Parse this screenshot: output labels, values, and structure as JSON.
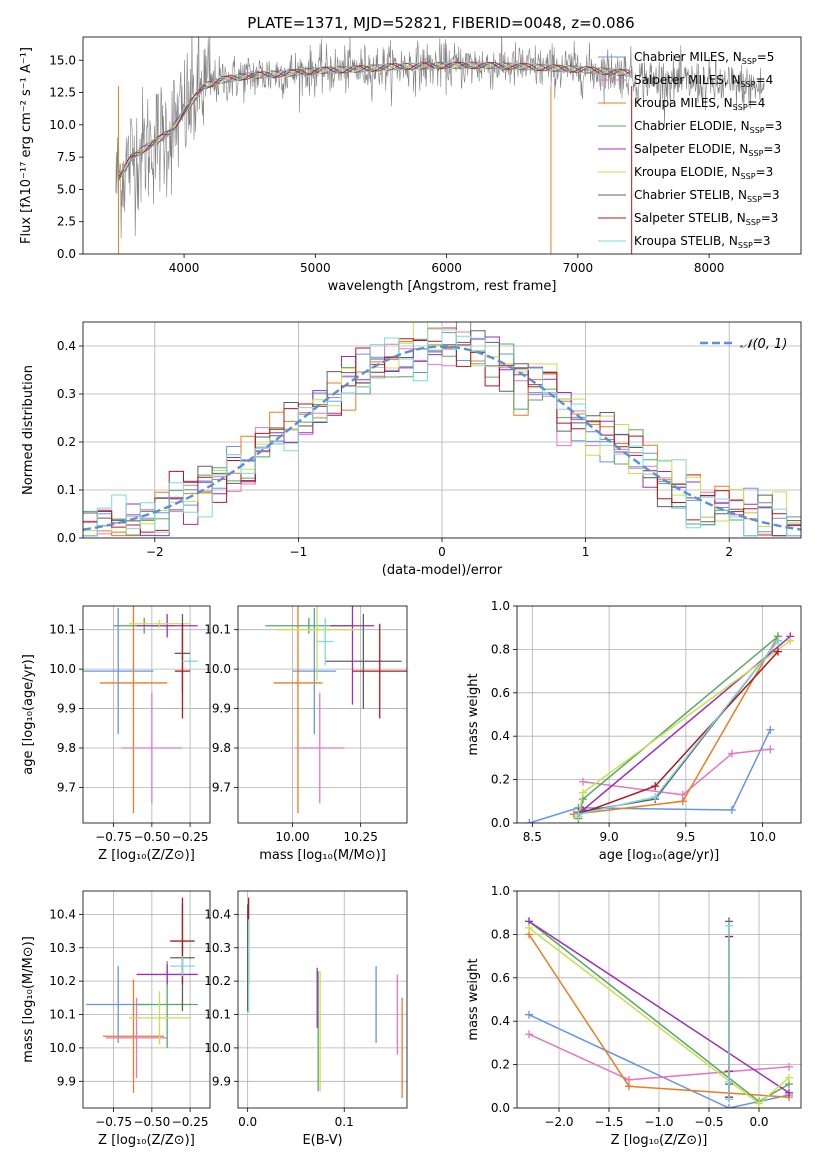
{
  "figure": {
    "title": "PLATE=1371, MJD=52821, FIBERID=0048, z=0.086"
  },
  "colors": {
    "Chabrier MILES": "#6495ed",
    "Salpeter MILES": "#e377c2",
    "Kroupa MILES": "#e67e22",
    "Chabrier ELODIE": "#55a868",
    "Salpeter ELODIE": "#9b30b8",
    "Kroupa ELODIE": "#c8e04a",
    "Chabrier STELIB": "#606060",
    "Salpeter STELIB": "#b3181c",
    "Kroupa STELIB": "#7fd7e0",
    "data": "#808080",
    "grid": "#b0b0b0"
  },
  "chart_data": [
    {
      "id": "spectrum",
      "type": "line",
      "title": "PLATE=1371, MJD=52821, FIBERID=0048, z=0.086",
      "xlabel": "wavelength [Angstrom, rest frame]",
      "ylabel": "Flux [fλ10⁻¹⁷ erg cm⁻² s⁻¹ A⁻¹]",
      "xlim": [
        3230,
        8700
      ],
      "ylim": [
        0,
        16.8
      ],
      "xticks": [
        4000,
        5000,
        6000,
        7000,
        8000
      ],
      "yticks": [
        0.0,
        2.5,
        5.0,
        7.5,
        10.0,
        12.5,
        15.0
      ],
      "grid": false,
      "legend_position": "right",
      "legend": [
        {
          "key": "Chabrier MILES",
          "label": "Chabrier MILES, N",
          "n": "=5"
        },
        {
          "key": "Salpeter MILES",
          "label": "Salpeter MILES, N",
          "n": "=4"
        },
        {
          "key": "Kroupa MILES",
          "label": "Kroupa MILES, N",
          "n": "=4"
        },
        {
          "key": "Chabrier ELODIE",
          "label": "Chabrier ELODIE, N",
          "n": "=3"
        },
        {
          "key": "Salpeter ELODIE",
          "label": "Salpeter ELODIE, N",
          "n": "=3"
        },
        {
          "key": "Kroupa ELODIE",
          "label": "Kroupa ELODIE, N",
          "n": "=3"
        },
        {
          "key": "Chabrier STELIB",
          "label": "Chabrier STELIB, N",
          "n": "=3"
        },
        {
          "key": "Salpeter STELIB",
          "label": "Salpeter STELIB, N",
          "n": "=3"
        },
        {
          "key": "Kroupa STELIB",
          "label": "Kroupa STELIB, N",
          "n": "=3"
        }
      ],
      "legend_subscript": "SSP",
      "envelope": [
        [
          3480,
          5.5
        ],
        [
          3600,
          7.5
        ],
        [
          3750,
          8.5
        ],
        [
          3900,
          9.5
        ],
        [
          4000,
          11.0
        ],
        [
          4150,
          13.0
        ],
        [
          4300,
          13.5
        ],
        [
          4500,
          13.8
        ],
        [
          4800,
          14.0
        ],
        [
          5000,
          14.2
        ],
        [
          5300,
          14.3
        ],
        [
          5600,
          14.5
        ],
        [
          6000,
          14.6
        ],
        [
          6300,
          14.6
        ],
        [
          6600,
          14.5
        ],
        [
          7000,
          14.3
        ],
        [
          7400,
          14.0
        ],
        [
          7420,
          13.8
        ]
      ],
      "data_end": 8420
    },
    {
      "id": "residuals",
      "type": "histogram",
      "xlabel": "(data-model)/error",
      "ylabel": "Normed distribution",
      "xlim": [
        -2.5,
        2.5
      ],
      "ylim": [
        0,
        0.45
      ],
      "xticks": [
        -2,
        -1,
        0,
        1,
        2
      ],
      "yticks": [
        0.0,
        0.1,
        0.2,
        0.3,
        0.4
      ],
      "grid": true,
      "legend_position": "top-right",
      "reference_label": "𝒩(0, 1)",
      "bin_width": 0.1
    },
    {
      "id": "age_vs_Z",
      "type": "scatter",
      "xlabel": "Z [log₁₀(Z/Z⊙)]",
      "ylabel": "age  [log₁₀(age/yr)]",
      "xlim": [
        -0.95,
        -0.12
      ],
      "ylim": [
        9.61,
        10.16
      ],
      "xticks": [
        -0.75,
        -0.5,
        -0.25
      ],
      "xtick_labels": [
        "−0.75",
        "−0.50",
        "−0.25"
      ],
      "yticks": [
        9.7,
        9.8,
        9.9,
        10.0,
        10.1
      ],
      "grid": true,
      "points": [
        {
          "key": "Chabrier MILES",
          "x": -0.72,
          "xerr": 0.23,
          "y": 9.995,
          "yerr": 0.16
        },
        {
          "key": "Kroupa MILES",
          "x": -0.62,
          "xerr": 0.22,
          "y": 9.965,
          "yerr": 0.33
        },
        {
          "key": "Salpeter MILES",
          "x": -0.5,
          "xerr": 0.2,
          "y": 9.8,
          "yerr": 0.14
        },
        {
          "key": "Chabrier ELODIE",
          "x": -0.55,
          "xerr": 0.2,
          "y": 10.11,
          "yerr": 0.02
        },
        {
          "key": "Salpeter ELODIE",
          "x": -0.4,
          "xerr": 0.2,
          "y": 10.11,
          "yerr": 0.03
        },
        {
          "key": "Kroupa ELODIE",
          "x": -0.45,
          "xerr": 0.2,
          "y": 10.115,
          "yerr": 0.01
        },
        {
          "key": "Chabrier STELIB",
          "x": -0.3,
          "xerr": 0.05,
          "y": 10.04,
          "yerr": 0.1
        },
        {
          "key": "Salpeter STELIB",
          "x": -0.3,
          "xerr": 0.05,
          "y": 9.995,
          "yerr": 0.12
        },
        {
          "key": "Kroupa STELIB",
          "x": -0.25,
          "xerr": 0.05,
          "y": 10.02,
          "yerr": 0.01
        }
      ]
    },
    {
      "id": "age_vs_mass",
      "type": "scatter",
      "xlabel": "mass [log₁₀(M/M⊙)]",
      "xlim": [
        9.8,
        10.42
      ],
      "ylim": [
        9.61,
        10.16
      ],
      "xticks": [
        10.0,
        10.25
      ],
      "xtick_labels": [
        "10.00",
        "10.25"
      ],
      "yticks": [
        9.7,
        9.8,
        9.9,
        10.0,
        10.1
      ],
      "grid": true,
      "points": [
        {
          "key": "Chabrier MILES",
          "x": 10.08,
          "xerr": 0.08,
          "y": 9.995,
          "yerr": 0.16
        },
        {
          "key": "Kroupa MILES",
          "x": 10.02,
          "xerr": 0.09,
          "y": 9.965,
          "yerr": 0.33
        },
        {
          "key": "Salpeter MILES",
          "x": 10.1,
          "xerr": 0.09,
          "y": 9.8,
          "yerr": 0.14
        },
        {
          "key": "Chabrier ELODIE",
          "x": 10.06,
          "xerr": 0.16,
          "y": 10.11,
          "yerr": 0.02
        },
        {
          "key": "Salpeter ELODIE",
          "x": 10.22,
          "xerr": 0.08,
          "y": 10.11,
          "yerr": 0.2
        },
        {
          "key": "Kroupa ELODIE",
          "x": 10.09,
          "xerr": 0.15,
          "y": 10.1,
          "yerr": 0.13
        },
        {
          "key": "Chabrier STELIB",
          "x": 10.26,
          "xerr": 0.14,
          "y": 10.02,
          "yerr": 0.12
        },
        {
          "key": "Salpeter STELIB",
          "x": 10.32,
          "xerr": 0.1,
          "y": 9.995,
          "yerr": 0.12
        },
        {
          "key": "Kroupa STELIB",
          "x": 10.12,
          "xerr": 0.03,
          "y": 10.07,
          "yerr": 0.06
        }
      ]
    },
    {
      "id": "weight_vs_age",
      "type": "line",
      "xlabel": "age  [log₁₀(age/yr)]",
      "ylabel": "mass weight",
      "xlim": [
        8.4,
        10.25
      ],
      "ylim": [
        0,
        1.0
      ],
      "xticks": [
        8.5,
        9.0,
        9.5,
        10.0
      ],
      "xtick_labels": [
        "8.5",
        "9.0",
        "9.5",
        "10.0"
      ],
      "yticks": [
        0.0,
        0.2,
        0.4,
        0.6,
        0.8,
        1.0
      ],
      "grid": true,
      "series": [
        {
          "key": "Chabrier MILES",
          "x": [
            8.48,
            8.8,
            9.8,
            10.05
          ],
          "y": [
            0.0,
            0.07,
            0.06,
            0.43
          ]
        },
        {
          "key": "Salpeter MILES",
          "x": [
            8.83,
            9.48,
            9.8,
            10.05
          ],
          "y": [
            0.19,
            0.13,
            0.32,
            0.34
          ]
        },
        {
          "key": "Kroupa MILES",
          "x": [
            8.77,
            9.48,
            10.1
          ],
          "y": [
            0.04,
            0.1,
            0.86
          ]
        },
        {
          "key": "Chabrier ELODIE",
          "x": [
            8.8,
            8.83,
            10.1
          ],
          "y": [
            0.02,
            0.11,
            0.86
          ]
        },
        {
          "key": "Salpeter ELODIE",
          "x": [
            8.8,
            8.83,
            10.18
          ],
          "y": [
            0.03,
            0.06,
            0.86
          ]
        },
        {
          "key": "Kroupa ELODIE",
          "x": [
            8.8,
            8.83,
            10.18
          ],
          "y": [
            0.03,
            0.14,
            0.84
          ]
        },
        {
          "key": "Chabrier STELIB",
          "x": [
            8.8,
            9.3,
            10.1
          ],
          "y": [
            0.05,
            0.11,
            0.84
          ]
        },
        {
          "key": "Salpeter STELIB",
          "x": [
            8.8,
            9.3,
            10.1
          ],
          "y": [
            0.04,
            0.17,
            0.79
          ]
        },
        {
          "key": "Kroupa STELIB",
          "x": [
            8.8,
            9.3,
            10.1
          ],
          "y": [
            0.04,
            0.12,
            0.84
          ]
        }
      ]
    },
    {
      "id": "mass_vs_Z",
      "type": "scatter",
      "xlabel": "Z [log₁₀(Z/Z⊙)]",
      "ylabel": "mass [log₁₀(M/M⊙)]",
      "xlim": [
        -0.95,
        -0.12
      ],
      "ylim": [
        9.82,
        10.47
      ],
      "xticks": [
        -0.75,
        -0.5,
        -0.25
      ],
      "xtick_labels": [
        "−0.75",
        "−0.50",
        "−0.25"
      ],
      "yticks": [
        9.9,
        10.0,
        10.1,
        10.2,
        10.3,
        10.4
      ],
      "grid": true,
      "points": [
        {
          "key": "Chabrier MILES",
          "x": -0.72,
          "xerr": 0.21,
          "y": 10.13,
          "yerr": 0.115
        },
        {
          "key": "Kroupa MILES",
          "x": -0.62,
          "xerr": 0.2,
          "y": 10.035,
          "yerr": 0.17
        },
        {
          "key": "Salpeter MILES",
          "x": -0.6,
          "xerr": 0.2,
          "y": 10.03,
          "yerr": 0.12
        },
        {
          "key": "Chabrier ELODIE",
          "x": -0.4,
          "xerr": 0.2,
          "y": 10.13,
          "yerr": 0.13
        },
        {
          "key": "Salpeter ELODIE",
          "x": -0.4,
          "xerr": 0.2,
          "y": 10.22,
          "yerr": 0.03
        },
        {
          "key": "Kroupa ELODIE",
          "x": -0.45,
          "xerr": 0.2,
          "y": 10.09,
          "yerr": 0.08
        },
        {
          "key": "Chabrier STELIB",
          "x": -0.3,
          "xerr": 0.08,
          "y": 10.27,
          "yerr": 0.16
        },
        {
          "key": "Salpeter STELIB",
          "x": -0.3,
          "xerr": 0.08,
          "y": 10.32,
          "yerr": 0.13
        },
        {
          "key": "Kroupa STELIB",
          "x": -0.3,
          "xerr": 0.08,
          "y": 10.245,
          "yerr": 0.03
        }
      ]
    },
    {
      "id": "mass_vs_ebv",
      "type": "scatter",
      "xlabel": "E(B-V)",
      "xlim": [
        -0.01,
        0.165
      ],
      "ylim": [
        9.82,
        10.47
      ],
      "xticks": [
        0.0,
        0.1
      ],
      "xtick_labels": [
        "0.0",
        "0.1"
      ],
      "yticks": [
        9.9,
        10.0,
        10.1,
        10.2,
        10.3,
        10.4
      ],
      "grid": true,
      "points": [
        {
          "key": "Chabrier MILES",
          "x": 0.133,
          "y": 10.13,
          "yerr": 0.115
        },
        {
          "key": "Salpeter MILES",
          "x": 0.155,
          "y": 10.1,
          "yerr": 0.12
        },
        {
          "key": "Kroupa MILES",
          "x": 0.16,
          "y": 10.0,
          "yerr": 0.15
        },
        {
          "key": "Chabrier ELODIE",
          "x": 0.073,
          "y": 10.05,
          "yerr": 0.18
        },
        {
          "key": "Salpeter ELODIE",
          "x": 0.072,
          "y": 10.15,
          "yerr": 0.09
        },
        {
          "key": "Kroupa ELODIE",
          "x": 0.075,
          "y": 10.05,
          "yerr": 0.18
        },
        {
          "key": "Chabrier STELIB",
          "x": 0.0,
          "y": 10.27,
          "yerr": 0.16
        },
        {
          "key": "Salpeter STELIB",
          "x": 0.001,
          "y": 10.32,
          "yerr": 0.13
        },
        {
          "key": "Kroupa STELIB",
          "x": 0.001,
          "y": 10.245,
          "yerr": 0.14
        }
      ]
    },
    {
      "id": "weight_vs_Z",
      "type": "line",
      "xlabel": "Z [log₁₀(Z/Z⊙)]",
      "ylabel": "mass weight",
      "xlim": [
        -2.42,
        0.42
      ],
      "ylim": [
        0,
        1.0
      ],
      "xticks": [
        -2.0,
        -1.5,
        -1.0,
        -0.5,
        0.0
      ],
      "xtick_labels": [
        "−2.0",
        "−1.5",
        "−1.0",
        "−0.5",
        "0.0"
      ],
      "yticks": [
        0.0,
        0.2,
        0.4,
        0.6,
        0.8,
        1.0
      ],
      "grid": true,
      "series": [
        {
          "key": "Chabrier MILES",
          "x": [
            -2.3,
            -0.3,
            0.3
          ],
          "y": [
            0.43,
            0.0,
            0.06
          ]
        },
        {
          "key": "Salpeter MILES",
          "x": [
            -2.3,
            -1.3,
            0.3
          ],
          "y": [
            0.34,
            0.13,
            0.19
          ]
        },
        {
          "key": "Kroupa MILES",
          "x": [
            -2.3,
            -1.3,
            0.3
          ],
          "y": [
            0.8,
            0.1,
            0.05
          ]
        },
        {
          "key": "Chabrier ELODIE",
          "x": [
            -2.3,
            0.0,
            0.3
          ],
          "y": [
            0.86,
            0.03,
            0.11
          ]
        },
        {
          "key": "Salpeter ELODIE",
          "x": [
            -2.3,
            0.3
          ],
          "y": [
            0.86,
            0.07
          ]
        },
        {
          "key": "Kroupa ELODIE",
          "x": [
            -2.3,
            0.0,
            0.3
          ],
          "y": [
            0.83,
            0.02,
            0.14
          ]
        },
        {
          "key": "Chabrier STELIB",
          "x": [
            -0.3,
            -0.3,
            -0.3
          ],
          "y": [
            0.86,
            0.05,
            0.11
          ]
        },
        {
          "key": "Salpeter STELIB",
          "x": [
            -0.3,
            -0.3,
            -0.3
          ],
          "y": [
            0.79,
            0.17,
            0.05
          ]
        },
        {
          "key": "Kroupa STELIB",
          "x": [
            -0.3,
            -0.3,
            -0.3
          ],
          "y": [
            0.84,
            0.12,
            0.04
          ]
        }
      ]
    }
  ]
}
